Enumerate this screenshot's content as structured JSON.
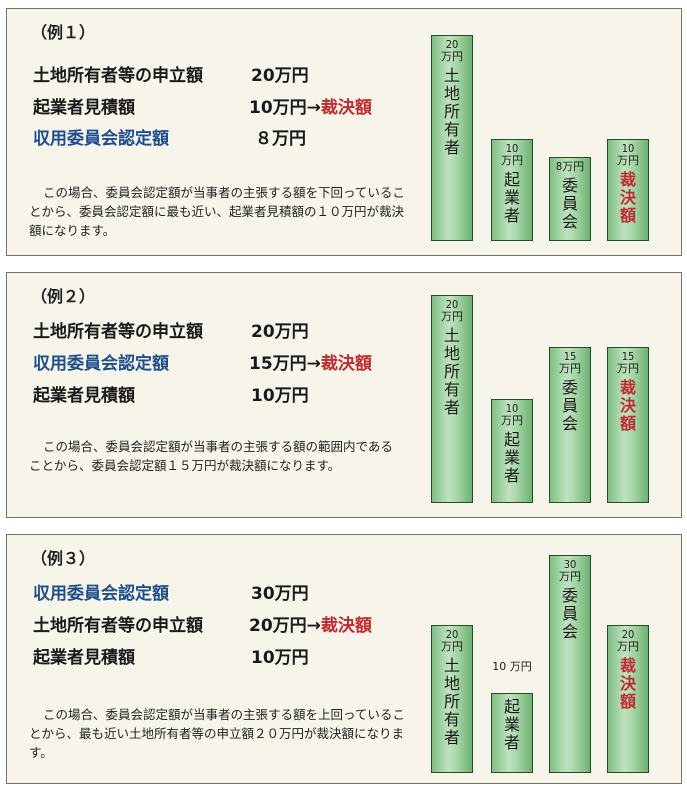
{
  "examples": [
    {
      "title": "（例１）",
      "rows": [
        {
          "label": "土地所有者等の申立額",
          "amount": "20万円",
          "arrow": "",
          "verdict": ""
        },
        {
          "label": "起業者見積額",
          "amount": "10万円",
          "arrow": "→",
          "verdict": "裁決額"
        },
        {
          "label": "収用委員会認定額",
          "amount": "８万円",
          "arrow": "",
          "verdict": ""
        }
      ],
      "description": "この場合、委員会認定額が当事者の主張する額を下回っていることから、委員会認定額に最も近い、起業者見積額の１０万円が裁決額になります。",
      "bars": [
        {
          "amount": "20\n万円",
          "name": "土\n地\n所\n有\n者"
        },
        {
          "amount": "10\n万円",
          "name": "起\n業\n者"
        },
        {
          "amount": "8万円",
          "name": "委\n員\n会"
        },
        {
          "amount": "10\n万円",
          "name": "裁\n決\n額"
        }
      ]
    },
    {
      "title": "（例２）",
      "rows": [
        {
          "label": "土地所有者等の申立額",
          "amount": "20万円",
          "arrow": "",
          "verdict": ""
        },
        {
          "label": "収用委員会認定額",
          "amount": "15万円",
          "arrow": "→",
          "verdict": "裁決額"
        },
        {
          "label": "起業者見積額",
          "amount": "10万円",
          "arrow": "",
          "verdict": ""
        }
      ],
      "description": "この場合、委員会認定額が当事者の主張する額の範囲内であることから、委員会認定額１５万円が裁決額になります。",
      "bars": [
        {
          "amount": "20\n万円",
          "name": "土\n地\n所\n有\n者"
        },
        {
          "amount": "10\n万円",
          "name": "起\n業\n者"
        },
        {
          "amount": "15\n万円",
          "name": "委\n員\n会"
        },
        {
          "amount": "15\n万円",
          "name": "裁\n決\n額"
        }
      ]
    },
    {
      "title": "（例３）",
      "rows": [
        {
          "label": "収用委員会認定額",
          "amount": "30万円",
          "arrow": "",
          "verdict": ""
        },
        {
          "label": "土地所有者等の申立額",
          "amount": "20万円",
          "arrow": "→",
          "verdict": "裁決額"
        },
        {
          "label": "起業者見積額",
          "amount": "10万円",
          "arrow": "",
          "verdict": ""
        }
      ],
      "description": "この場合、委員会認定額が当事者の主張する額を上回っていることから、最も近い土地所有者等の申立額２０万円が裁決額になります。",
      "bars": [
        {
          "amount": "20\n万円",
          "name": "土\n地\n所\n有\n者"
        },
        {
          "amount": "10\n万円",
          "name": "起\n業\n者"
        },
        {
          "amount": "30\n万円",
          "name": "委\n員\n会"
        },
        {
          "amount": "20\n万円",
          "name": "裁\n決\n額"
        }
      ]
    }
  ],
  "colors": {
    "blue_label": "#1e4f8c",
    "red_verdict": "#c22a30",
    "bar_green": "#a9d8ab",
    "panel_bg": "#f7f4ea"
  }
}
